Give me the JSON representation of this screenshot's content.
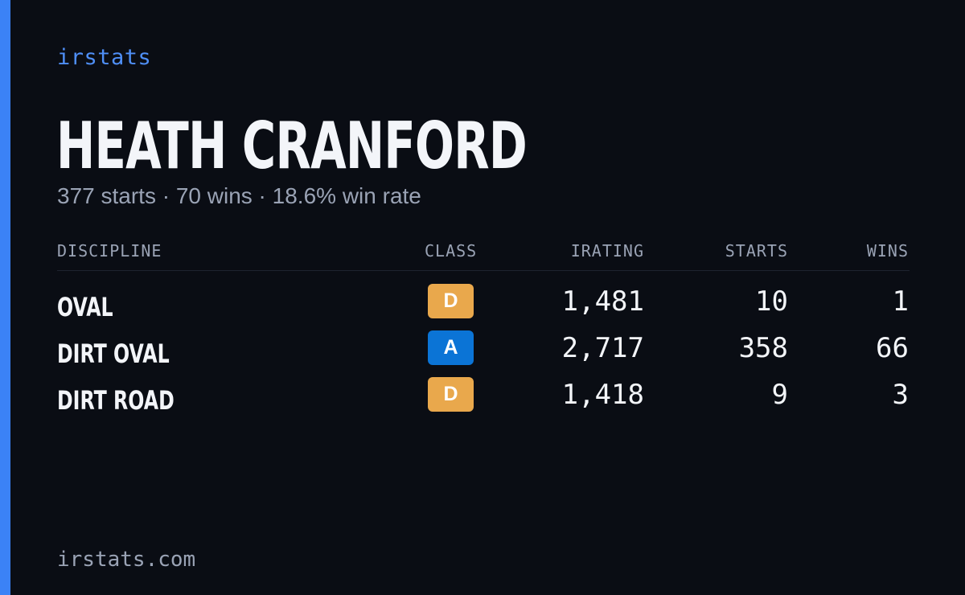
{
  "brand": {
    "label": "irstats",
    "accent_color": "#3b82f6"
  },
  "driver": {
    "name": "HEATH CRANFORD",
    "summary": "377 starts · 70 wins · 18.6% win rate"
  },
  "table": {
    "headers": {
      "discipline": "DISCIPLINE",
      "class": "CLASS",
      "irating": "IRATING",
      "starts": "STARTS",
      "wins": "WINS"
    },
    "rows": [
      {
        "discipline": "OVAL",
        "class": "D",
        "class_color": "#e9a84c",
        "irating": "1,481",
        "starts": "10",
        "wins": "1"
      },
      {
        "discipline": "DIRT OVAL",
        "class": "A",
        "class_color": "#0b74d6",
        "irating": "2,717",
        "starts": "358",
        "wins": "66"
      },
      {
        "discipline": "DIRT ROAD",
        "class": "D",
        "class_color": "#e9a84c",
        "irating": "1,418",
        "starts": "9",
        "wins": "3"
      }
    ]
  },
  "footer": {
    "url": "irstats.com"
  }
}
